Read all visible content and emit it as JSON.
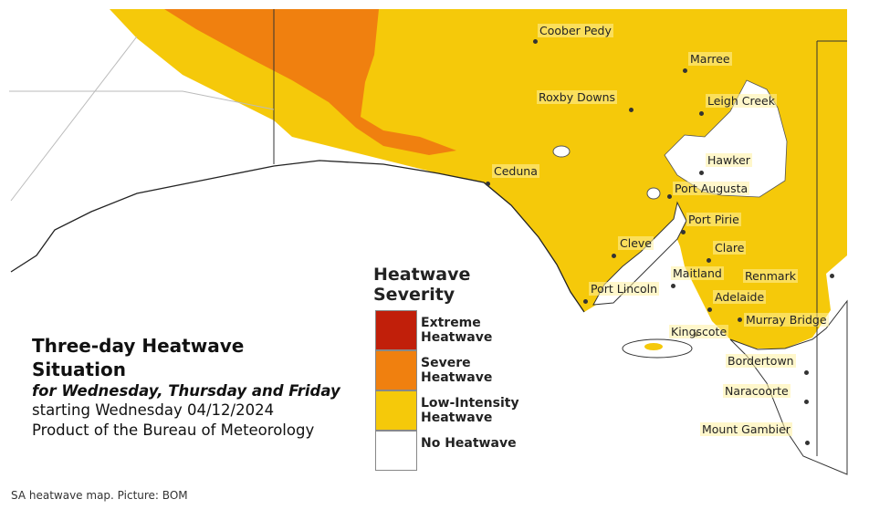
{
  "map": {
    "places": [
      {
        "label": "Coober Pedy"
      },
      {
        "label": "Marree"
      },
      {
        "label": "Roxby Downs"
      },
      {
        "label": "Leigh Creek"
      },
      {
        "label": "Hawker"
      },
      {
        "label": "Ceduna"
      },
      {
        "label": "Port Augusta"
      },
      {
        "label": "Port Pirie"
      },
      {
        "label": "Cleve"
      },
      {
        "label": "Clare"
      },
      {
        "label": "Maitland"
      },
      {
        "label": "Renmark"
      },
      {
        "label": "Port Lincoln"
      },
      {
        "label": "Adelaide"
      },
      {
        "label": "Murray Bridge"
      },
      {
        "label": "Kingscote"
      },
      {
        "label": "Bordertown"
      },
      {
        "label": "Naracoorte"
      },
      {
        "label": "Mount Gambier"
      }
    ]
  },
  "legend": {
    "title": "Heatwave Severity",
    "items": [
      {
        "label": "Extreme Heatwave",
        "color": "#c11f0a"
      },
      {
        "label": "Severe Heatwave",
        "color": "#f0800f"
      },
      {
        "label": "Low-Intensity Heatwave",
        "color": "#f5c90a"
      },
      {
        "label": "No Heatwave",
        "color": "#ffffff"
      }
    ]
  },
  "info": {
    "title": "Three-day Heatwave Situation",
    "subtitle": "for Wednesday, Thursday and Friday",
    "period": "starting Wednesday 04/12/2024",
    "source": "Product of the Bureau of Meteorology"
  },
  "caption": "SA heatwave map. Picture: BOM"
}
